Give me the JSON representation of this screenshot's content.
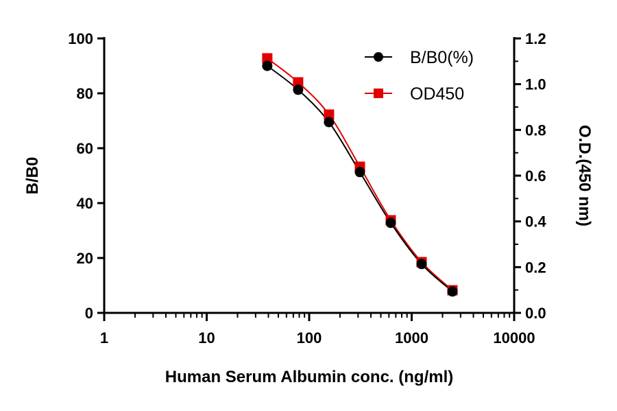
{
  "chart_data": {
    "type": "line",
    "xlabel": "Human Serum Albumin conc. (ng/ml)",
    "ylabel": "B/B0",
    "y2label": "O.D.(450 nm)",
    "xscale": "log",
    "xlim": [
      1,
      10000
    ],
    "ylim": [
      0,
      100
    ],
    "y2lim": [
      0,
      1.2
    ],
    "x_ticks": [
      "1",
      "10",
      "100",
      "1000",
      "10000"
    ],
    "y_ticks": [
      "0",
      "20",
      "40",
      "60",
      "80",
      "100"
    ],
    "y2_ticks": [
      "0.0",
      "0.2",
      "0.4",
      "0.6",
      "0.8",
      "1.0",
      "1.2"
    ],
    "grid": false,
    "legend_position": "top-right",
    "x": [
      39,
      78,
      156,
      312.5,
      625,
      1250,
      2500
    ],
    "series": [
      {
        "name": "B/B0(%)",
        "axis": "left",
        "marker": "circle",
        "color": "#000000",
        "values": [
          90,
          81.3,
          69.5,
          51.3,
          32.8,
          17.8,
          7.8
        ]
      },
      {
        "name": "OD450",
        "axis": "right",
        "marker": "square",
        "color": "#e00000",
        "values": [
          1.113,
          1.008,
          0.867,
          0.639,
          0.405,
          0.222,
          0.099
        ]
      }
    ]
  }
}
